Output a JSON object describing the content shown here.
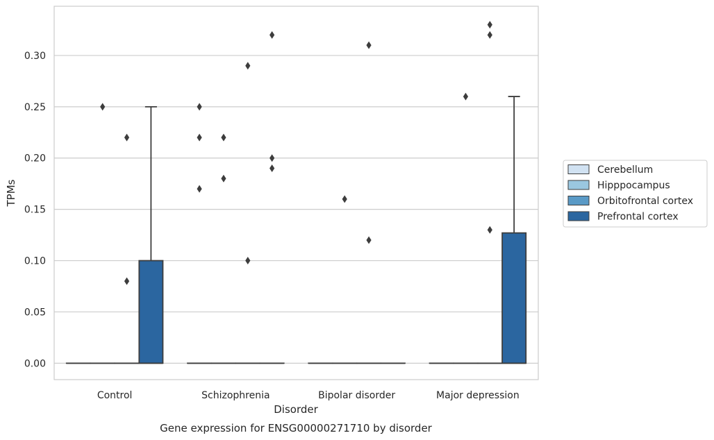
{
  "chart_data": {
    "type": "box",
    "title": "",
    "caption": "Gene expression for ENSG00000271710 by disorder",
    "xlabel": "Disorder",
    "ylabel": "TPMs",
    "ylim": [
      -0.016,
      0.348
    ],
    "yticks": [
      0.0,
      0.05,
      0.1,
      0.15,
      0.2,
      0.25,
      0.3
    ],
    "ytick_labels": [
      "0.00",
      "0.05",
      "0.10",
      "0.15",
      "0.20",
      "0.25",
      "0.30"
    ],
    "grid": "horizontal",
    "legend_position": "right-center",
    "categories": [
      "Control",
      "Schizophrenia",
      "Bipolar disorder",
      "Major depression"
    ],
    "series": [
      {
        "name": "Cerebellum",
        "color": "#d1e2f2",
        "boxes": [
          {
            "category": "Control",
            "q1": 0,
            "median": 0,
            "q3": 0,
            "whisker_low": 0,
            "whisker_high": 0,
            "outliers": []
          },
          {
            "category": "Schizophrenia",
            "q1": 0,
            "median": 0,
            "q3": 0,
            "whisker_low": 0,
            "whisker_high": 0,
            "outliers": [
              0.17,
              0.25,
              0.22
            ]
          },
          {
            "category": "Bipolar disorder",
            "q1": 0,
            "median": 0,
            "q3": 0,
            "whisker_low": 0,
            "whisker_high": 0,
            "outliers": []
          },
          {
            "category": "Major depression",
            "q1": 0,
            "median": 0,
            "q3": 0,
            "whisker_low": 0,
            "whisker_high": 0,
            "outliers": []
          }
        ]
      },
      {
        "name": "Hipppocampus",
        "color": "#9ac7e0",
        "boxes": [
          {
            "category": "Control",
            "q1": 0,
            "median": 0,
            "q3": 0,
            "whisker_low": 0,
            "whisker_high": 0,
            "outliers": [
              0.25
            ]
          },
          {
            "category": "Schizophrenia",
            "q1": 0,
            "median": 0,
            "q3": 0,
            "whisker_low": 0,
            "whisker_high": 0,
            "outliers": [
              0.18,
              0.22
            ]
          },
          {
            "category": "Bipolar disorder",
            "q1": 0,
            "median": 0,
            "q3": 0,
            "whisker_low": 0,
            "whisker_high": 0,
            "outliers": [
              0.16
            ]
          },
          {
            "category": "Major depression",
            "q1": 0,
            "median": 0,
            "q3": 0,
            "whisker_low": 0,
            "whisker_high": 0,
            "outliers": [
              0.26
            ]
          }
        ]
      },
      {
        "name": "Orbitofrontal cortex",
        "color": "#5a9ac6",
        "boxes": [
          {
            "category": "Control",
            "q1": 0,
            "median": 0,
            "q3": 0,
            "whisker_low": 0,
            "whisker_high": 0,
            "outliers": [
              0.08,
              0.22
            ]
          },
          {
            "category": "Schizophrenia",
            "q1": 0,
            "median": 0,
            "q3": 0,
            "whisker_low": 0,
            "whisker_high": 0,
            "outliers": [
              0.1,
              0.29
            ]
          },
          {
            "category": "Bipolar disorder",
            "q1": 0,
            "median": 0,
            "q3": 0,
            "whisker_low": 0,
            "whisker_high": 0,
            "outliers": [
              0.12,
              0.31
            ]
          },
          {
            "category": "Major depression",
            "q1": 0,
            "median": 0,
            "q3": 0,
            "whisker_low": 0,
            "whisker_high": 0,
            "outliers": [
              0.13,
              0.32,
              0.33
            ]
          }
        ]
      },
      {
        "name": "Prefrontal cortex",
        "color": "#2b66a0",
        "boxes": [
          {
            "category": "Control",
            "q1": 0,
            "median": 0,
            "q3": 0.1,
            "whisker_low": 0,
            "whisker_high": 0.25,
            "outliers": []
          },
          {
            "category": "Schizophrenia",
            "q1": 0,
            "median": 0,
            "q3": 0,
            "whisker_low": 0,
            "whisker_high": 0,
            "outliers": [
              0.19,
              0.2,
              0.32
            ]
          },
          {
            "category": "Bipolar disorder",
            "q1": 0,
            "median": 0,
            "q3": 0,
            "whisker_low": 0,
            "whisker_high": 0,
            "outliers": []
          },
          {
            "category": "Major depression",
            "q1": 0,
            "median": 0,
            "q3": 0.127,
            "whisker_low": 0,
            "whisker_high": 0.26,
            "outliers": []
          }
        ]
      }
    ]
  }
}
